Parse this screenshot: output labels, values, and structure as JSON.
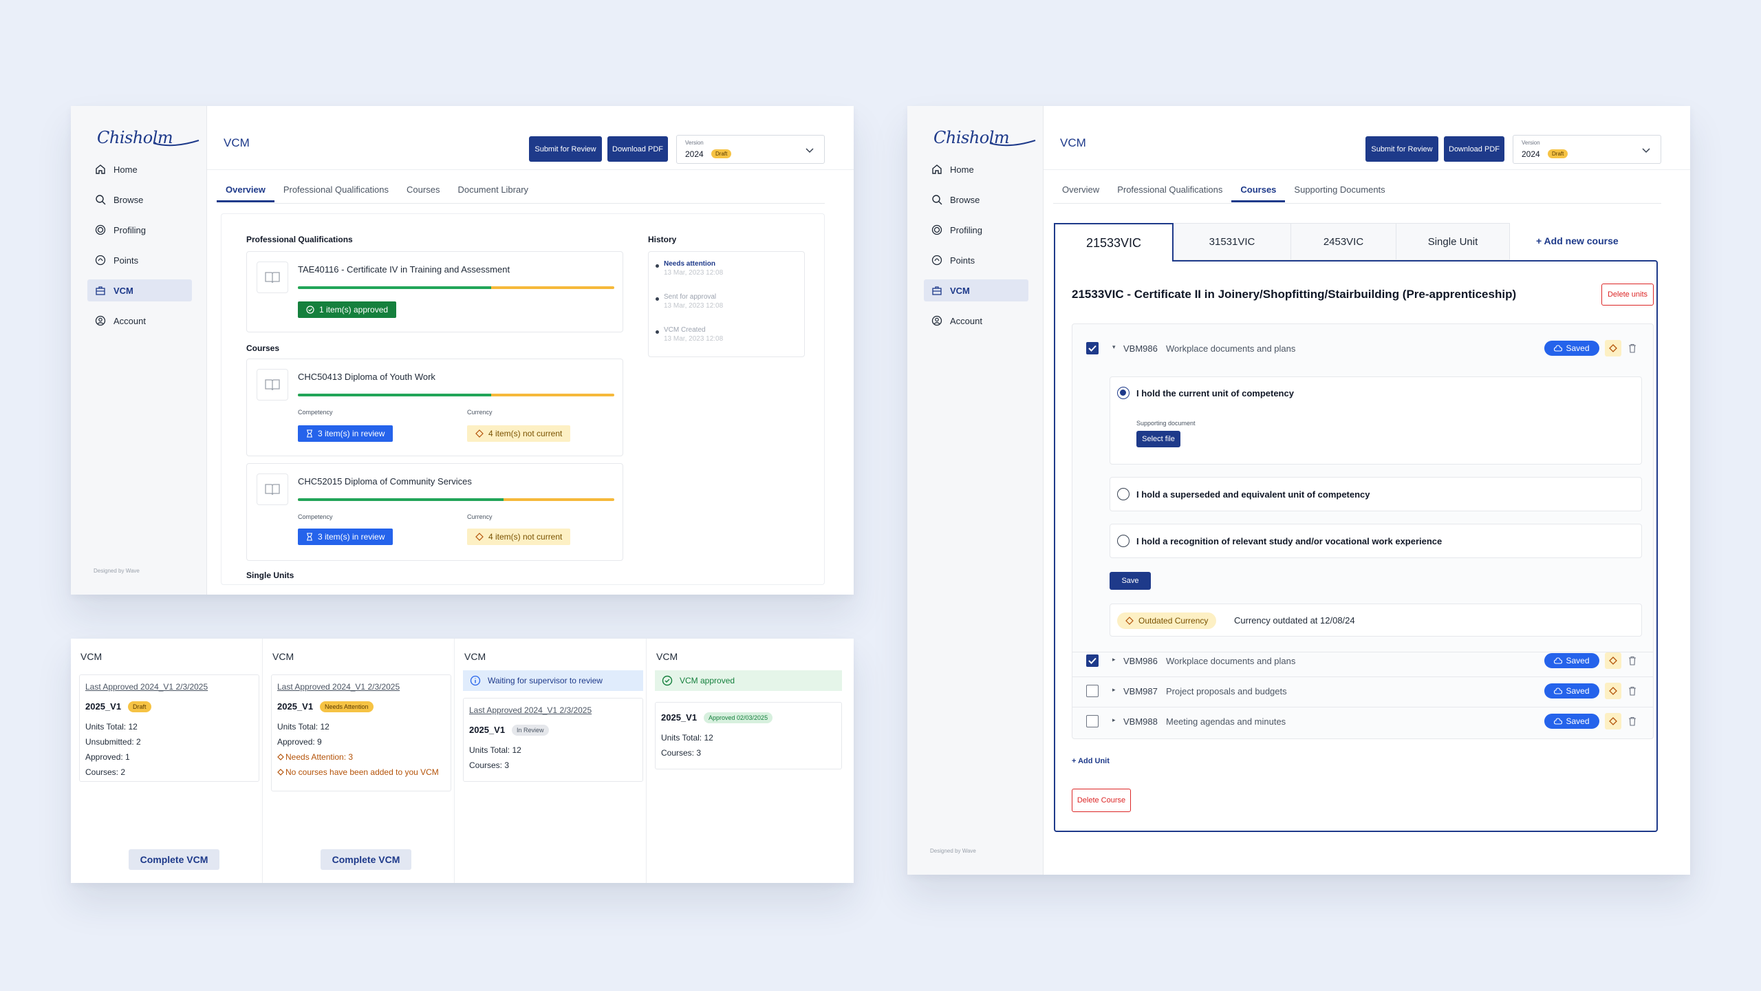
{
  "brand": {
    "logo_text": "Chisholm",
    "designed_by": "Designed by Wave"
  },
  "sidebar": {
    "items": [
      {
        "label": "Home",
        "icon": "home-icon"
      },
      {
        "label": "Browse",
        "icon": "search-icon"
      },
      {
        "label": "Profiling",
        "icon": "target-icon"
      },
      {
        "label": "Points",
        "icon": "points-icon"
      },
      {
        "label": "VCM",
        "icon": "briefcase-icon"
      },
      {
        "label": "Account",
        "icon": "user-icon"
      }
    ]
  },
  "header": {
    "title": "VCM",
    "submit_label": "Submit for Review",
    "download_label": "Download PDF",
    "version_label": "Version",
    "version_value": "2024",
    "version_badge": "Draft"
  },
  "overview": {
    "tabs": [
      "Overview",
      "Professional Qualifications",
      "Courses",
      "Document Library"
    ],
    "qualifications_title": "Professional Qualifications",
    "qualification": {
      "title": "TAE40116 - Certificate IV in Training and Assessment",
      "progress": 0.61,
      "pill": "1 item(s) approved"
    },
    "courses_title": "Courses",
    "courses": [
      {
        "title": "CHC50413 Diploma of Youth Work",
        "progress": 0.61,
        "competency_label": "Competency",
        "currency_label": "Currency",
        "review_pill": "3 item(s) in review",
        "currency_pill": "4 item(s) not current"
      },
      {
        "title": "CHC52015 Diploma of Community Services",
        "progress": 0.65,
        "competency_label": "Competency",
        "currency_label": "Currency",
        "review_pill": "3 item(s) in review",
        "currency_pill": "4 item(s) not current"
      }
    ],
    "single_units_title": "Single Units",
    "history_title": "History",
    "history": [
      {
        "title": "Needs attention",
        "date": "13 Mar, 2023 12:08"
      },
      {
        "title": "Sent for approval",
        "date": "13 Mar, 2023 12:08"
      },
      {
        "title": "VCM Created",
        "date": "13 Mar, 2023 12:08"
      }
    ]
  },
  "vcm_cards": [
    {
      "title": "VCM",
      "last_approved": "Last Approved 2024_V1 2/3/2025",
      "version": "2025_V1",
      "tag": "Draft",
      "stats": [
        "Units Total: 12",
        "Unsubmitted: 2",
        "Approved: 1",
        "Courses: 2"
      ],
      "button": "Complete VCM"
    },
    {
      "title": "VCM",
      "last_approved": "Last Approved 2024_V1 2/3/2025",
      "version": "2025_V1",
      "tag": "Needs Attention",
      "stats": [
        "Units Total: 12",
        "Approved: 9"
      ],
      "warnings": [
        "Needs Attention: 3",
        "No courses have been added to you VCM"
      ],
      "button": "Complete VCM"
    },
    {
      "title": "VCM",
      "banner": "Waiting for supervisor to review",
      "last_approved": "Last Approved 2024_V1 2/3/2025",
      "version": "2025_V1",
      "tag": "In Review",
      "stats": [
        "Units Total: 12",
        "Courses: 3"
      ]
    },
    {
      "title": "VCM",
      "banner": "VCM approved",
      "version": "2025_V1",
      "tag": "Approved 02/03/2025",
      "stats": [
        "Units Total: 12",
        "Courses: 3"
      ]
    }
  ],
  "courses_page": {
    "tabs": [
      "Overview",
      "Professional Qualifications",
      "Courses",
      "Supporting Documents"
    ],
    "course_tabs": [
      "21533VIC",
      "31531VIC",
      "2453VIC",
      "Single Unit"
    ],
    "add_course": "+ Add new course",
    "course_title": "21533VIC - Certificate II in Joinery/Shopfitting/Stairbuilding (Pre-apprenticeship)",
    "delete_units": "Delete units",
    "expanded_unit": {
      "code": "VBM986",
      "name": "Workplace documents and plans",
      "status": "Saved"
    },
    "options": [
      "I hold the current unit of competency",
      "I hold a superseded and equivalent unit of competency",
      "I hold a recognition of relevant study and/or vocational work experience"
    ],
    "supporting_document_label": "Supporting document",
    "select_file": "Select file",
    "save": "Save",
    "outdated_pill": "Outdated Currency",
    "outdated_text": "Currency outdated at 12/08/24",
    "units": [
      {
        "code": "VBM986",
        "name": "Workplace documents and plans",
        "status": "Saved",
        "checked": true
      },
      {
        "code": "VBM987",
        "name": "Project proposals and budgets",
        "status": "Saved",
        "checked": false
      },
      {
        "code": "VBM988",
        "name": "Meeting agendas and minutes",
        "status": "Saved",
        "checked": false
      }
    ],
    "add_unit": "+ Add Unit",
    "delete_course": "Delete Course"
  },
  "colors": {
    "primary": "#1e3a8a",
    "accent_blue": "#2563eb",
    "success": "#15803d",
    "warning_bg": "#fdf0c4",
    "draft": "#f6c344"
  }
}
